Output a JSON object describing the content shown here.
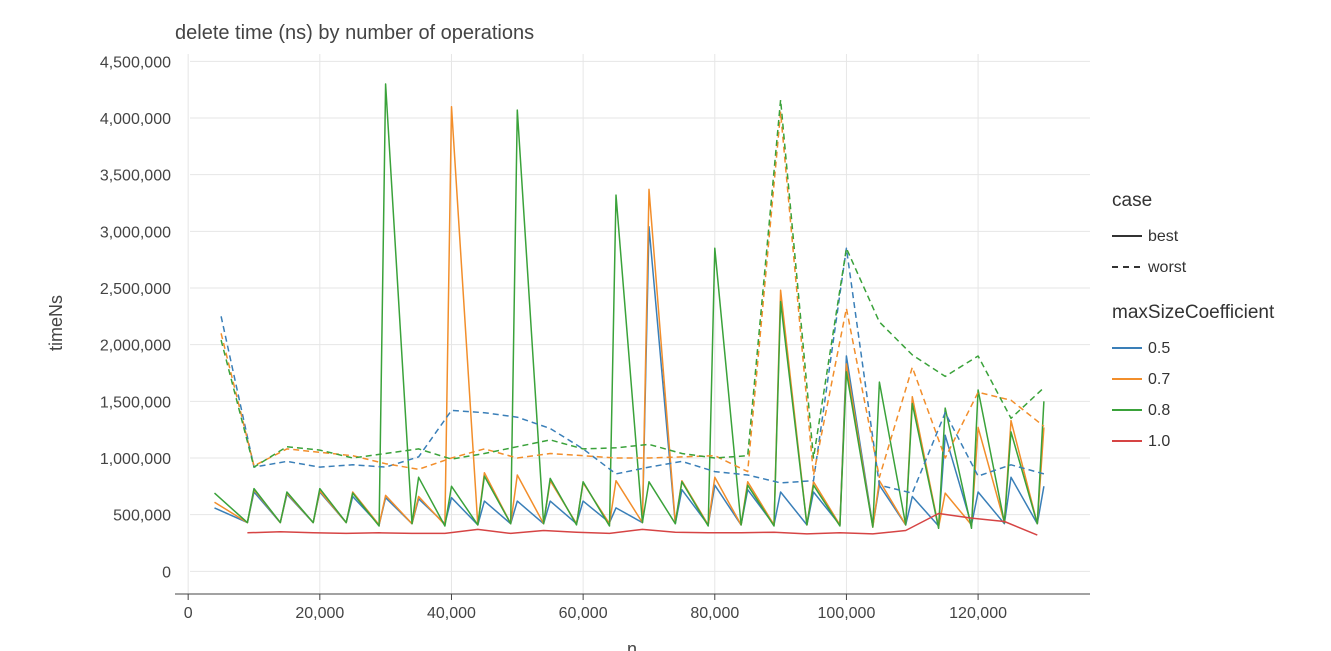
{
  "chart_data": {
    "type": "line",
    "title": "delete time (ns) by number of operations",
    "xlabel": "n",
    "ylabel": "timeNs",
    "xlim": [
      -2000,
      137000
    ],
    "ylim": [
      -200000,
      4600000
    ],
    "xticks": [
      0,
      20000,
      40000,
      60000,
      80000,
      100000,
      120000
    ],
    "yticks": [
      0,
      500000,
      1000000,
      1500000,
      2000000,
      2500000,
      3000000,
      3500000,
      4000000,
      4500000
    ],
    "grid": true,
    "legend_position": "right",
    "legend": {
      "case_title": "case",
      "case_items": [
        {
          "label": "best",
          "dash": "solid"
        },
        {
          "label": "worst",
          "dash": "dashed"
        }
      ],
      "color_title": "maxSizeCoefficient",
      "color_items": [
        {
          "label": "0.5",
          "color": "#3a7fb8"
        },
        {
          "label": "0.7",
          "color": "#f28e2b"
        },
        {
          "label": "0.8",
          "color": "#3aa23a"
        },
        {
          "label": "1.0",
          "color": "#d64444"
        }
      ]
    },
    "series": [
      {
        "name": "0.5 best",
        "coefficient": "0.5",
        "case": "best",
        "color": "#3a7fb8",
        "dash": "solid",
        "points": [
          [
            4000,
            560000
          ],
          [
            9000,
            430000
          ],
          [
            10000,
            700000
          ],
          [
            14000,
            430000
          ],
          [
            15000,
            680000
          ],
          [
            19000,
            430000
          ],
          [
            20000,
            700000
          ],
          [
            24000,
            430000
          ],
          [
            25000,
            660000
          ],
          [
            29000,
            410000
          ],
          [
            30000,
            650000
          ],
          [
            34000,
            420000
          ],
          [
            35000,
            640000
          ],
          [
            39000,
            420000
          ],
          [
            40000,
            650000
          ],
          [
            44000,
            410000
          ],
          [
            45000,
            620000
          ],
          [
            49000,
            420000
          ],
          [
            50000,
            620000
          ],
          [
            54000,
            420000
          ],
          [
            55000,
            620000
          ],
          [
            59000,
            420000
          ],
          [
            60000,
            620000
          ],
          [
            64000,
            430000
          ],
          [
            65000,
            560000
          ],
          [
            69000,
            430000
          ],
          [
            70000,
            3040000
          ],
          [
            74000,
            420000
          ],
          [
            75000,
            720000
          ],
          [
            79000,
            410000
          ],
          [
            80000,
            760000
          ],
          [
            84000,
            410000
          ],
          [
            85000,
            720000
          ],
          [
            89000,
            410000
          ],
          [
            90000,
            700000
          ],
          [
            94000,
            410000
          ],
          [
            95000,
            700000
          ],
          [
            99000,
            410000
          ],
          [
            100000,
            1900000
          ],
          [
            104000,
            400000
          ],
          [
            105000,
            760000
          ],
          [
            109000,
            410000
          ],
          [
            110000,
            660000
          ],
          [
            114000,
            400000
          ],
          [
            115000,
            1200000
          ],
          [
            119000,
            410000
          ],
          [
            120000,
            700000
          ],
          [
            124000,
            420000
          ],
          [
            125000,
            830000
          ],
          [
            129000,
            420000
          ],
          [
            130000,
            750000
          ]
        ]
      },
      {
        "name": "0.7 best",
        "coefficient": "0.7",
        "case": "best",
        "color": "#f28e2b",
        "dash": "solid",
        "points": [
          [
            4000,
            610000
          ],
          [
            9000,
            430000
          ],
          [
            10000,
            720000
          ],
          [
            14000,
            430000
          ],
          [
            15000,
            690000
          ],
          [
            19000,
            430000
          ],
          [
            20000,
            710000
          ],
          [
            24000,
            430000
          ],
          [
            25000,
            700000
          ],
          [
            29000,
            410000
          ],
          [
            30000,
            670000
          ],
          [
            34000,
            420000
          ],
          [
            35000,
            660000
          ],
          [
            39000,
            410000
          ],
          [
            40000,
            4100000
          ],
          [
            44000,
            410000
          ],
          [
            45000,
            870000
          ],
          [
            49000,
            420000
          ],
          [
            50000,
            850000
          ],
          [
            54000,
            420000
          ],
          [
            55000,
            800000
          ],
          [
            59000,
            420000
          ],
          [
            60000,
            780000
          ],
          [
            64000,
            420000
          ],
          [
            65000,
            800000
          ],
          [
            69000,
            430000
          ],
          [
            70000,
            3370000
          ],
          [
            74000,
            430000
          ],
          [
            75000,
            800000
          ],
          [
            79000,
            410000
          ],
          [
            80000,
            830000
          ],
          [
            84000,
            410000
          ],
          [
            85000,
            790000
          ],
          [
            89000,
            410000
          ],
          [
            90000,
            2480000
          ],
          [
            94000,
            410000
          ],
          [
            95000,
            790000
          ],
          [
            99000,
            410000
          ],
          [
            100000,
            1830000
          ],
          [
            104000,
            390000
          ],
          [
            105000,
            800000
          ],
          [
            109000,
            410000
          ],
          [
            110000,
            1540000
          ],
          [
            114000,
            390000
          ],
          [
            115000,
            690000
          ],
          [
            119000,
            410000
          ],
          [
            120000,
            1270000
          ],
          [
            124000,
            430000
          ],
          [
            125000,
            1330000
          ],
          [
            129000,
            420000
          ],
          [
            130000,
            1270000
          ]
        ]
      },
      {
        "name": "0.8 best",
        "coefficient": "0.8",
        "case": "best",
        "color": "#3aa23a",
        "dash": "solid",
        "points": [
          [
            4000,
            690000
          ],
          [
            9000,
            430000
          ],
          [
            10000,
            730000
          ],
          [
            14000,
            430000
          ],
          [
            15000,
            700000
          ],
          [
            19000,
            430000
          ],
          [
            20000,
            730000
          ],
          [
            24000,
            430000
          ],
          [
            25000,
            690000
          ],
          [
            29000,
            400000
          ],
          [
            30000,
            4300000
          ],
          [
            34000,
            420000
          ],
          [
            35000,
            830000
          ],
          [
            39000,
            400000
          ],
          [
            40000,
            750000
          ],
          [
            44000,
            410000
          ],
          [
            45000,
            840000
          ],
          [
            49000,
            420000
          ],
          [
            50000,
            4070000
          ],
          [
            54000,
            420000
          ],
          [
            55000,
            820000
          ],
          [
            59000,
            410000
          ],
          [
            60000,
            790000
          ],
          [
            64000,
            400000
          ],
          [
            65000,
            3320000
          ],
          [
            69000,
            430000
          ],
          [
            70000,
            790000
          ],
          [
            74000,
            420000
          ],
          [
            75000,
            790000
          ],
          [
            79000,
            400000
          ],
          [
            80000,
            2850000
          ],
          [
            84000,
            410000
          ],
          [
            85000,
            760000
          ],
          [
            89000,
            400000
          ],
          [
            90000,
            2380000
          ],
          [
            94000,
            410000
          ],
          [
            95000,
            760000
          ],
          [
            99000,
            400000
          ],
          [
            100000,
            1760000
          ],
          [
            104000,
            390000
          ],
          [
            105000,
            1670000
          ],
          [
            109000,
            410000
          ],
          [
            110000,
            1480000
          ],
          [
            114000,
            380000
          ],
          [
            115000,
            1440000
          ],
          [
            119000,
            380000
          ],
          [
            120000,
            1600000
          ],
          [
            124000,
            430000
          ],
          [
            125000,
            1230000
          ],
          [
            129000,
            420000
          ],
          [
            130000,
            1500000
          ]
        ]
      },
      {
        "name": "1.0 best",
        "coefficient": "1.0",
        "case": "best",
        "color": "#d64444",
        "dash": "solid",
        "points": [
          [
            9000,
            340000
          ],
          [
            14000,
            350000
          ],
          [
            19000,
            340000
          ],
          [
            24000,
            335000
          ],
          [
            29000,
            340000
          ],
          [
            34000,
            335000
          ],
          [
            39000,
            335000
          ],
          [
            44000,
            370000
          ],
          [
            49000,
            335000
          ],
          [
            54000,
            360000
          ],
          [
            59000,
            345000
          ],
          [
            64000,
            335000
          ],
          [
            69000,
            370000
          ],
          [
            74000,
            345000
          ],
          [
            79000,
            340000
          ],
          [
            84000,
            340000
          ],
          [
            89000,
            345000
          ],
          [
            94000,
            330000
          ],
          [
            99000,
            340000
          ],
          [
            104000,
            330000
          ],
          [
            109000,
            360000
          ],
          [
            114000,
            510000
          ],
          [
            119000,
            470000
          ],
          [
            124000,
            440000
          ],
          [
            129000,
            320000
          ]
        ]
      },
      {
        "name": "0.5 worst",
        "coefficient": "0.5",
        "case": "worst",
        "color": "#3a7fb8",
        "dash": "dashed",
        "points": [
          [
            5000,
            2250000
          ],
          [
            10000,
            920000
          ],
          [
            15000,
            970000
          ],
          [
            20000,
            920000
          ],
          [
            25000,
            940000
          ],
          [
            30000,
            920000
          ],
          [
            35000,
            1010000
          ],
          [
            40000,
            1420000
          ],
          [
            45000,
            1400000
          ],
          [
            50000,
            1360000
          ],
          [
            55000,
            1260000
          ],
          [
            60000,
            1080000
          ],
          [
            65000,
            860000
          ],
          [
            70000,
            920000
          ],
          [
            75000,
            970000
          ],
          [
            80000,
            880000
          ],
          [
            85000,
            850000
          ],
          [
            90000,
            780000
          ],
          [
            95000,
            800000
          ],
          [
            100000,
            2850000
          ],
          [
            105000,
            760000
          ],
          [
            110000,
            690000
          ],
          [
            115000,
            1400000
          ],
          [
            120000,
            840000
          ],
          [
            125000,
            940000
          ],
          [
            130000,
            860000
          ]
        ]
      },
      {
        "name": "0.7 worst",
        "coefficient": "0.7",
        "case": "worst",
        "color": "#f28e2b",
        "dash": "dashed",
        "points": [
          [
            5000,
            2100000
          ],
          [
            10000,
            930000
          ],
          [
            15000,
            1080000
          ],
          [
            20000,
            1050000
          ],
          [
            25000,
            1020000
          ],
          [
            30000,
            950000
          ],
          [
            35000,
            900000
          ],
          [
            40000,
            1000000
          ],
          [
            45000,
            1080000
          ],
          [
            50000,
            1000000
          ],
          [
            55000,
            1040000
          ],
          [
            60000,
            1020000
          ],
          [
            65000,
            1000000
          ],
          [
            70000,
            1000000
          ],
          [
            75000,
            1010000
          ],
          [
            80000,
            1020000
          ],
          [
            85000,
            880000
          ],
          [
            90000,
            4050000
          ],
          [
            95000,
            850000
          ],
          [
            100000,
            2320000
          ],
          [
            105000,
            830000
          ],
          [
            110000,
            1800000
          ],
          [
            115000,
            1000000
          ],
          [
            120000,
            1580000
          ],
          [
            125000,
            1510000
          ],
          [
            130000,
            1280000
          ]
        ]
      },
      {
        "name": "0.8 worst",
        "coefficient": "0.8",
        "case": "worst",
        "color": "#3aa23a",
        "dash": "dashed",
        "points": [
          [
            5000,
            2040000
          ],
          [
            10000,
            920000
          ],
          [
            15000,
            1100000
          ],
          [
            20000,
            1070000
          ],
          [
            25000,
            1000000
          ],
          [
            30000,
            1040000
          ],
          [
            35000,
            1080000
          ],
          [
            40000,
            990000
          ],
          [
            45000,
            1040000
          ],
          [
            50000,
            1100000
          ],
          [
            55000,
            1160000
          ],
          [
            60000,
            1080000
          ],
          [
            65000,
            1090000
          ],
          [
            70000,
            1120000
          ],
          [
            75000,
            1040000
          ],
          [
            80000,
            1000000
          ],
          [
            85000,
            1020000
          ],
          [
            90000,
            4160000
          ],
          [
            95000,
            1000000
          ],
          [
            100000,
            2850000
          ],
          [
            105000,
            2200000
          ],
          [
            110000,
            1910000
          ],
          [
            115000,
            1720000
          ],
          [
            120000,
            1900000
          ],
          [
            125000,
            1350000
          ],
          [
            130000,
            1620000
          ]
        ]
      }
    ]
  }
}
